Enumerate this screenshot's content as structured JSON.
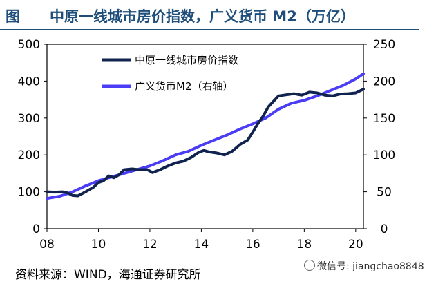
{
  "header": {
    "figure_label": "图",
    "title": "中原一线城市房价指数，广义货币 M2（万亿）"
  },
  "source": "资料来源：WIND，海通证券研究所",
  "watermark": "微信号: jiangchao8848",
  "colors": {
    "index_line": "#10234e",
    "m2_line": "#4b3cf5",
    "title": "#1e4e79"
  },
  "chart_data": {
    "type": "line",
    "x_ticks": [
      "08",
      "10",
      "12",
      "14",
      "16",
      "18",
      "20"
    ],
    "x_tick_values": [
      2008,
      2010,
      2012,
      2014,
      2016,
      2018,
      2020
    ],
    "xlim": [
      2008,
      2020.3
    ],
    "y_left": {
      "ticks": [
        0,
        100,
        200,
        300,
        400,
        500
      ],
      "lim": [
        0,
        500
      ]
    },
    "y_right": {
      "ticks": [
        0,
        50,
        100,
        150,
        200,
        250
      ],
      "lim": [
        0,
        250
      ]
    },
    "legend_position": "top-left",
    "series": [
      {
        "name": "中原一线城市房价指数",
        "axis": "left",
        "color": "#10234e",
        "x": [
          2008.0,
          2008.3,
          2008.6,
          2008.8,
          2009.0,
          2009.2,
          2009.5,
          2009.8,
          2010.0,
          2010.2,
          2010.4,
          2010.6,
          2010.8,
          2011.0,
          2011.3,
          2011.6,
          2011.9,
          2012.1,
          2012.4,
          2012.7,
          2013.0,
          2013.3,
          2013.6,
          2013.9,
          2014.1,
          2014.3,
          2014.6,
          2014.9,
          2015.2,
          2015.5,
          2015.8,
          2016.0,
          2016.2,
          2016.4,
          2016.6,
          2016.8,
          2017.0,
          2017.3,
          2017.6,
          2017.9,
          2018.2,
          2018.5,
          2018.8,
          2019.1,
          2019.4,
          2019.7,
          2020.0,
          2020.3
        ],
        "values": [
          100,
          99,
          100,
          97,
          90,
          89,
          100,
          112,
          125,
          130,
          143,
          138,
          146,
          160,
          162,
          160,
          160,
          152,
          160,
          170,
          178,
          183,
          193,
          207,
          212,
          208,
          205,
          200,
          210,
          228,
          240,
          262,
          285,
          305,
          330,
          345,
          360,
          363,
          366,
          362,
          370,
          368,
          362,
          360,
          365,
          366,
          368,
          378
        ]
      },
      {
        "name": "广义货币M2（右轴）",
        "axis": "right",
        "color": "#4b3cf5",
        "x": [
          2008.0,
          2008.5,
          2009.0,
          2009.5,
          2010.0,
          2010.5,
          2011.0,
          2011.5,
          2012.0,
          2012.5,
          2013.0,
          2013.5,
          2014.0,
          2014.5,
          2015.0,
          2015.5,
          2016.0,
          2016.5,
          2017.0,
          2017.5,
          2018.0,
          2018.5,
          2019.0,
          2019.5,
          2020.0,
          2020.3
        ],
        "values": [
          41,
          44,
          50,
          58,
          65,
          70,
          75,
          80,
          85,
          92,
          100,
          105,
          113,
          120,
          127,
          135,
          142,
          150,
          162,
          170,
          174,
          180,
          187,
          194,
          203,
          210
        ]
      }
    ]
  }
}
